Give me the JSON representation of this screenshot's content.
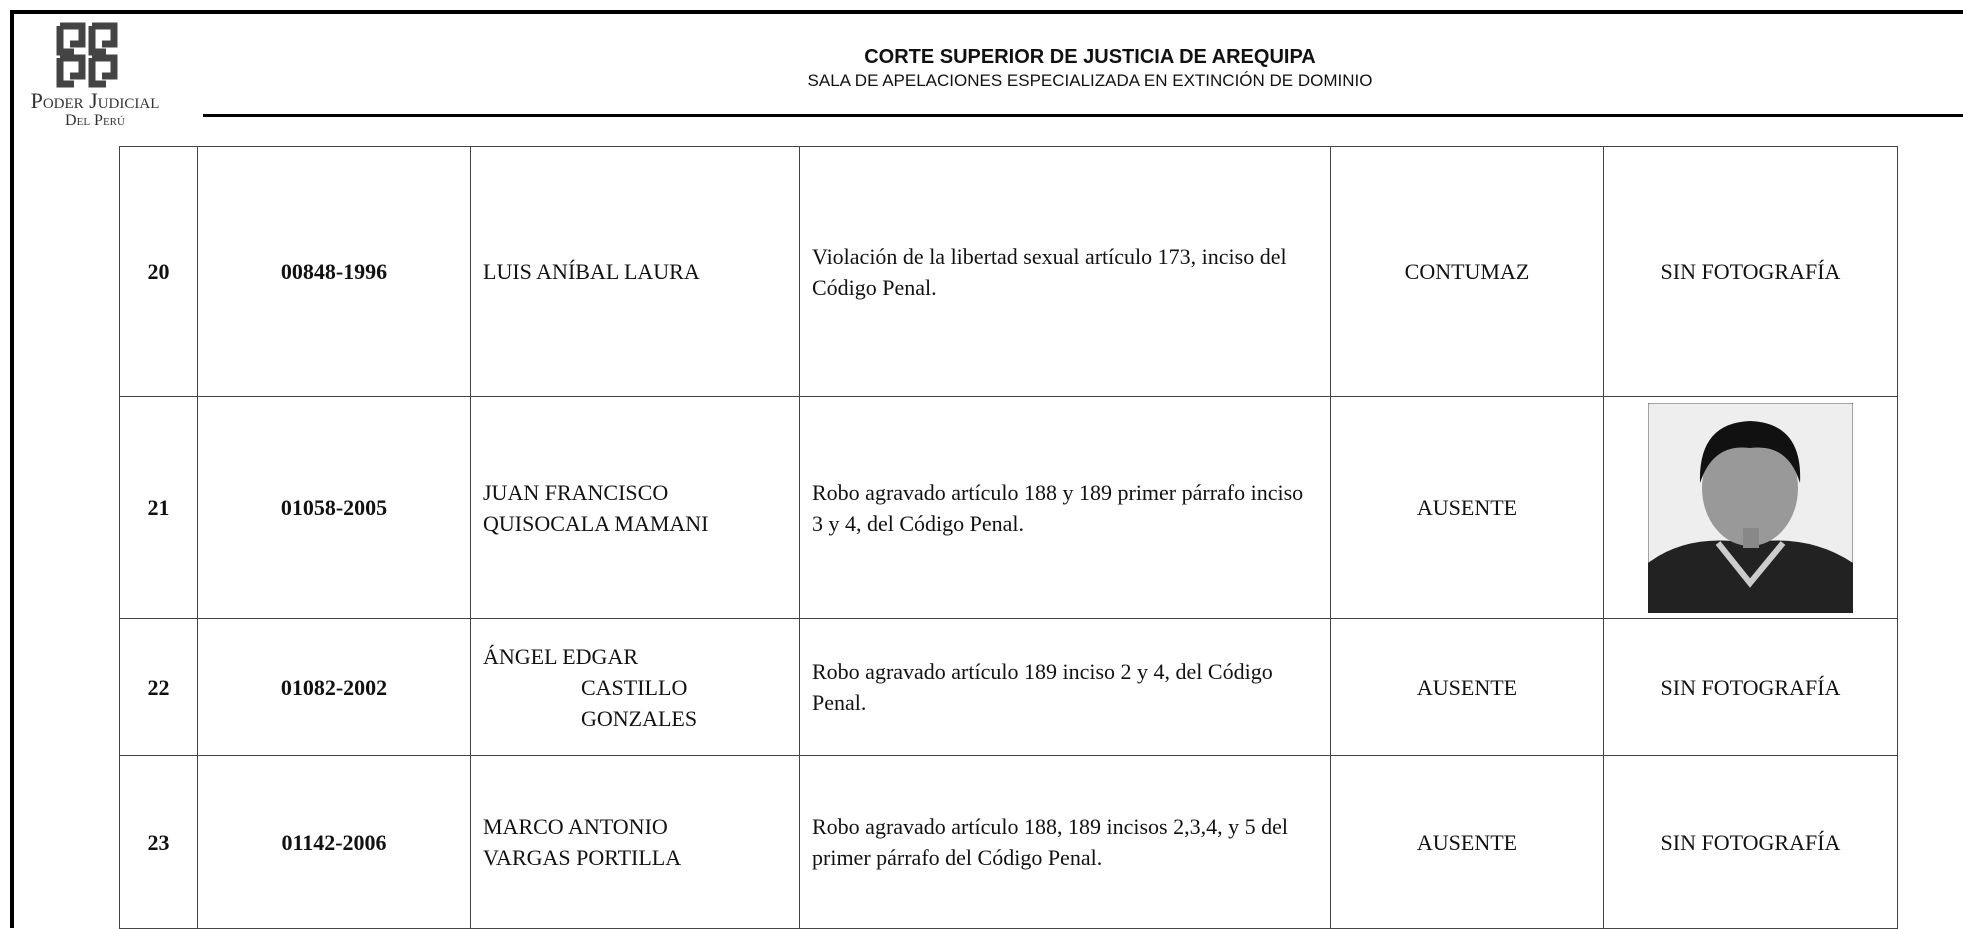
{
  "header": {
    "logo_line1": "Poder Judicial",
    "logo_line2": "Del Perú",
    "title": "CORTE SUPERIOR DE JUSTICIA DE AREQUIPA",
    "subtitle": "SALA DE APELACIONES ESPECIALIZADA EN EXTINCIÓN DE DOMINIO"
  },
  "table": {
    "rows": [
      {
        "number": "20",
        "case": "00848-1996",
        "name_lines": [
          "LUIS ANÍBAL LAURA"
        ],
        "crime": "Violación de la libertad sexual artículo 173, inciso del Código Penal.",
        "status": "CONTUMAZ",
        "photo": "SIN FOTOGRAFÍA"
      },
      {
        "number": "21",
        "case": "01058-2005",
        "name_lines": [
          "JUAN FRANCISCO",
          "QUISOCALA MAMANI"
        ],
        "crime": "Robo agravado artículo 188 y 189 primer párrafo inciso 3 y 4, del Código Penal.",
        "status": "AUSENTE"
      },
      {
        "number": "22",
        "case": "01082-2002",
        "name_lines": [
          "ÁNGEL EDGAR",
          "CASTILLO",
          "GONZALES"
        ],
        "crime": "Robo agravado artículo 189 inciso 2 y 4, del Código Penal.",
        "status": "AUSENTE",
        "photo": "SIN FOTOGRAFÍA"
      },
      {
        "number": "23",
        "case": "01142-2006",
        "name_lines": [
          "MARCO ANTONIO",
          "VARGAS PORTILLA"
        ],
        "crime": "Robo agravado artículo 188, 189 incisos 2,3,4, y 5 del primer párrafo del Código Penal.",
        "status": "AUSENTE",
        "photo": "SIN FOTOGRAFÍA"
      }
    ]
  }
}
